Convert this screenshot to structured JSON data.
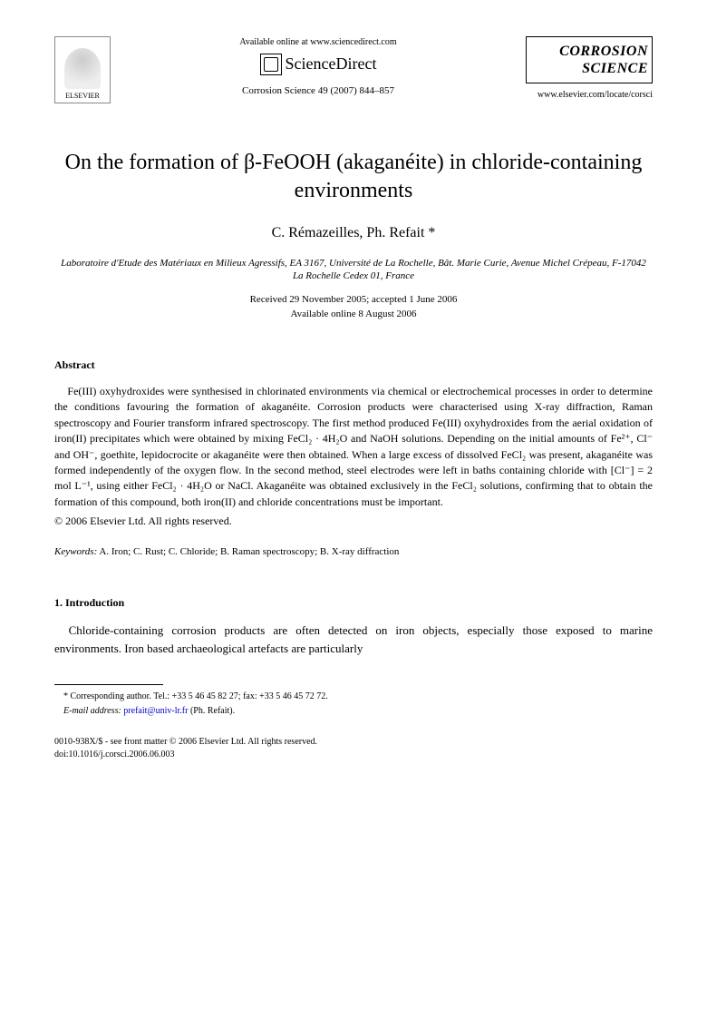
{
  "header": {
    "elsevier_label": "ELSEVIER",
    "available_online": "Available online at www.sciencedirect.com",
    "sciencedirect": "ScienceDirect",
    "journal_ref": "Corrosion Science 49 (2007) 844–857",
    "journal_title_line1": "CORROSION",
    "journal_title_line2": "SCIENCE",
    "journal_url": "www.elsevier.com/locate/corsci"
  },
  "article": {
    "title": "On the formation of β-FeOOH (akaganéite) in chloride-containing environments",
    "authors": "C. Rémazeilles, Ph. Refait *",
    "affiliation": "Laboratoire d'Etude des Matériaux en Milieux Agressifs, EA 3167, Université de La Rochelle, Bât. Marie Curie, Avenue Michel Crépeau, F-17042 La Rochelle Cedex 01, France",
    "date_received": "Received 29 November 2005; accepted 1 June 2006",
    "date_online": "Available online 8 August 2006"
  },
  "abstract": {
    "heading": "Abstract",
    "text": "Fe(III) oxyhydroxides were synthesised in chlorinated environments via chemical or electrochemical processes in order to determine the conditions favouring the formation of akaganéite. Corrosion products were characterised using X-ray diffraction, Raman spectroscopy and Fourier transform infrared spectroscopy. The first method produced Fe(III) oxyhydroxides from the aerial oxidation of iron(II) precipitates which were obtained by mixing FeCl₂ · 4H₂O and NaOH solutions. Depending on the initial amounts of Fe²⁺, Cl⁻ and OH⁻, goethite, lepidocrocite or akaganéite were then obtained. When a large excess of dissolved FeCl₂ was present, akaganéite was formed independently of the oxygen flow. In the second method, steel electrodes were left in baths containing chloride with [Cl⁻] = 2 mol L⁻¹, using either FeCl₂ · 4H₂O or NaCl. Akaganéite was obtained exclusively in the FeCl₂ solutions, confirming that to obtain the formation of this compound, both iron(II) and chloride concentrations must be important.",
    "copyright": "© 2006 Elsevier Ltd. All rights reserved."
  },
  "keywords": {
    "label": "Keywords:",
    "text": "A. Iron; C. Rust; C. Chloride; B. Raman spectroscopy; B. X-ray diffraction"
  },
  "introduction": {
    "heading": "1. Introduction",
    "text": "Chloride-containing corrosion products are often detected on iron objects, especially those exposed to marine environments. Iron based archaeological artefacts are particularly"
  },
  "footnotes": {
    "corresponding": "* Corresponding author. Tel.: +33 5 46 45 82 27; fax: +33 5 46 45 72 72.",
    "email_label": "E-mail address:",
    "email": "prefait@univ-lr.fr",
    "email_suffix": "(Ph. Refait)."
  },
  "footer": {
    "line1": "0010-938X/$ - see front matter © 2006 Elsevier Ltd. All rights reserved.",
    "line2": "doi:10.1016/j.corsci.2006.06.003"
  }
}
